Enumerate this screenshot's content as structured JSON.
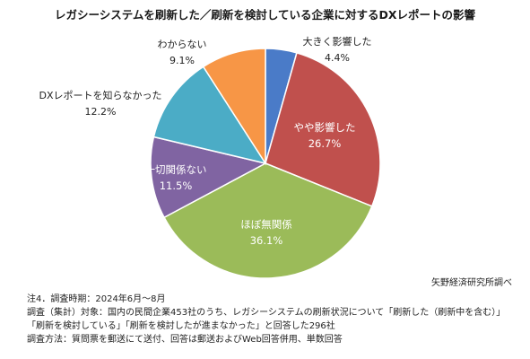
{
  "chart_data": {
    "type": "pie",
    "title": "レガシーシステムを刷新した／刷新を検討している企業に対するDXレポートの影響",
    "slices": [
      {
        "label": "大きく影響した",
        "value": 4.4,
        "value_text": "4.4%",
        "color": "#4a7bc8"
      },
      {
        "label": "やや影響した",
        "value": 26.7,
        "value_text": "26.7%",
        "color": "#c0504d"
      },
      {
        "label": "ほぼ無関係",
        "value": 36.1,
        "value_text": "36.1%",
        "color": "#9bbb59"
      },
      {
        "label": "一切関係ない",
        "value": 11.5,
        "value_text": "11.5%",
        "color": "#8064a2"
      },
      {
        "label": "DXレポートを知らなかった",
        "value": 12.2,
        "value_text": "12.2%",
        "color": "#4bacc6"
      },
      {
        "label": "わからない",
        "value": 9.1,
        "value_text": "9.1%",
        "color": "#f79646"
      }
    ]
  },
  "source": "矢野経済研究所調べ",
  "notes": [
    "注4．調査時期：2024年6月～8月",
    "調査（集計）対象：国内の民間企業453社のうち、レガシーシステムの刷新状況について「刷新した（刷新中を含む）」",
    "「刷新を検討している」「刷新を検討したが進まなかった」と回答した296社",
    "調査方法：質問票を郵送にて送付、回答は郵送およびWeb回答併用、単数回答"
  ]
}
